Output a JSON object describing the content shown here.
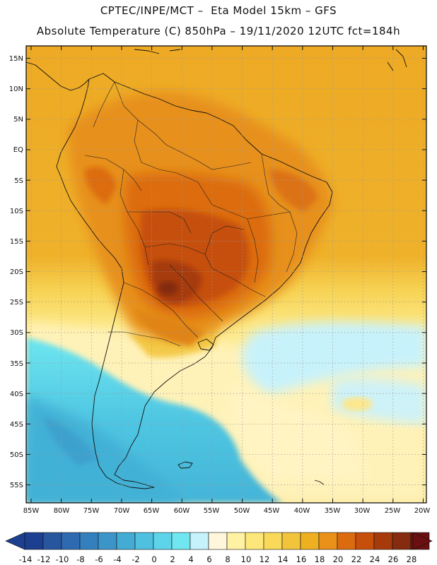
{
  "header": {
    "line1": "CPTEC/INPE/MCT –  Eta Model 15km – GFS",
    "line2": "Absolute Temperature (C) 850hPa – 19/11/2020 12UTC fct=184h"
  },
  "map": {
    "lat_labels": [
      "15N",
      "10N",
      "5N",
      "EQ",
      "5S",
      "10S",
      "15S",
      "20S",
      "25S",
      "30S",
      "35S",
      "40S",
      "45S",
      "50S",
      "55S"
    ],
    "lon_labels": [
      "85W",
      "80W",
      "75W",
      "70W",
      "65W",
      "60W",
      "55W",
      "50W",
      "45W",
      "40W",
      "35W",
      "30W",
      "25W",
      "20W"
    ]
  },
  "colorbar": {
    "labels": [
      "-14",
      "-12",
      "-10",
      "-8",
      "-6",
      "-4",
      "-2",
      "0",
      "2",
      "4",
      "6",
      "8",
      "10",
      "12",
      "14",
      "16",
      "18",
      "20",
      "22",
      "24",
      "26",
      "28"
    ],
    "colors": [
      "#1c3f8f",
      "#27569f",
      "#2e6aaf",
      "#3480bf",
      "#3b95c9",
      "#43abd4",
      "#4fc0df",
      "#5dd4ea",
      "#6fe6f0",
      "#c6f2fb",
      "#fff6dc",
      "#fff2a2",
      "#fde77a",
      "#f8d95a",
      "#f2c43c",
      "#eeaf21",
      "#e99118",
      "#dc6a0e",
      "#c74f0c",
      "#a63a0b",
      "#842b10",
      "#6b1010"
    ]
  }
}
